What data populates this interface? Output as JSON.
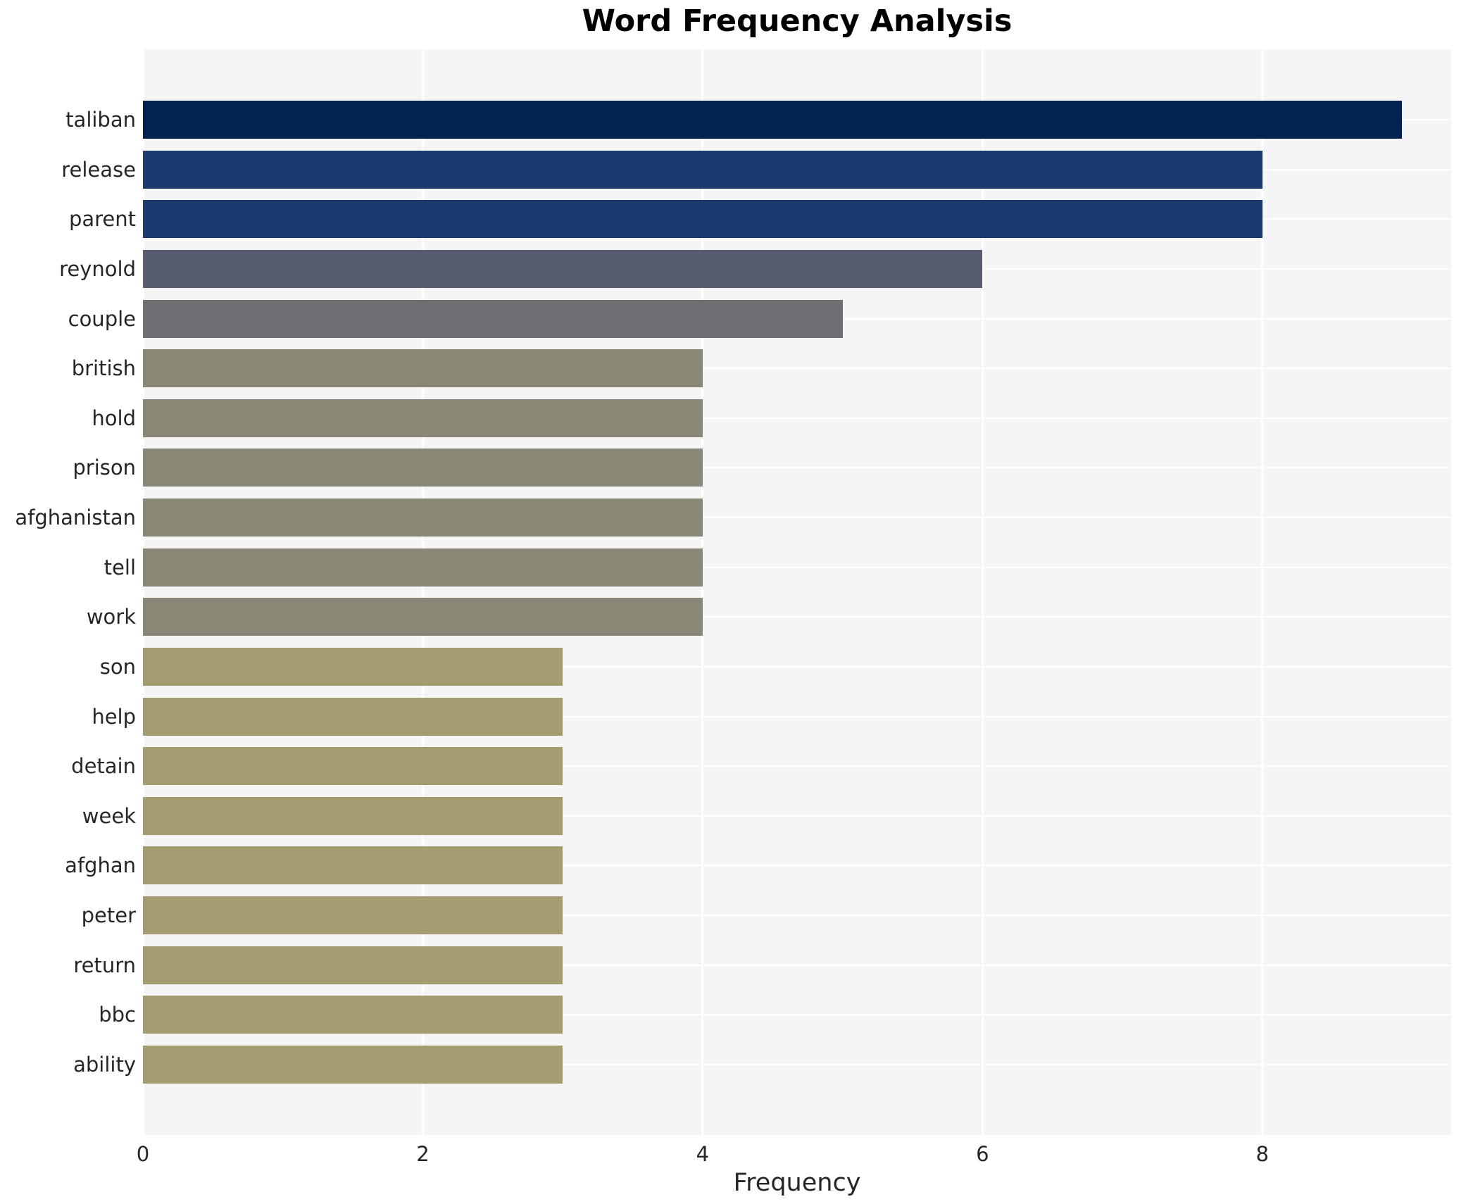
{
  "chart_data": {
    "type": "bar",
    "orientation": "horizontal",
    "title": "Word Frequency Analysis",
    "xlabel": "Frequency",
    "ylabel": "",
    "xlim": [
      0,
      9.35
    ],
    "xticks": [
      0,
      2,
      4,
      6,
      8
    ],
    "grid": true,
    "legend": false,
    "categories": [
      "taliban",
      "release",
      "parent",
      "reynold",
      "couple",
      "british",
      "hold",
      "prison",
      "afghanistan",
      "tell",
      "work",
      "son",
      "help",
      "detain",
      "week",
      "afghan",
      "peter",
      "return",
      "bbc",
      "ability"
    ],
    "values": [
      9,
      8,
      8,
      6,
      5,
      4,
      4,
      4,
      4,
      4,
      4,
      3,
      3,
      3,
      3,
      3,
      3,
      3,
      3,
      3
    ],
    "bar_colors": [
      "#04224e",
      "#1b3a6e",
      "#1b3a6e",
      "#575d6e",
      "#6e6f72",
      "#8a8777",
      "#8a8777",
      "#8a8777",
      "#8a8777",
      "#8a8777",
      "#8a8777",
      "#a59b70",
      "#a59b70",
      "#a59b70",
      "#a59b70",
      "#a59b70",
      "#a59b70",
      "#a59b70",
      "#a59b70",
      "#a59b70"
    ]
  },
  "style": {
    "page_bg": "#ffffff",
    "plot_bg": "#f5f5f6",
    "grid_color": "#ffffff",
    "tick_text_color": "#262626",
    "title_color": "#000000"
  }
}
